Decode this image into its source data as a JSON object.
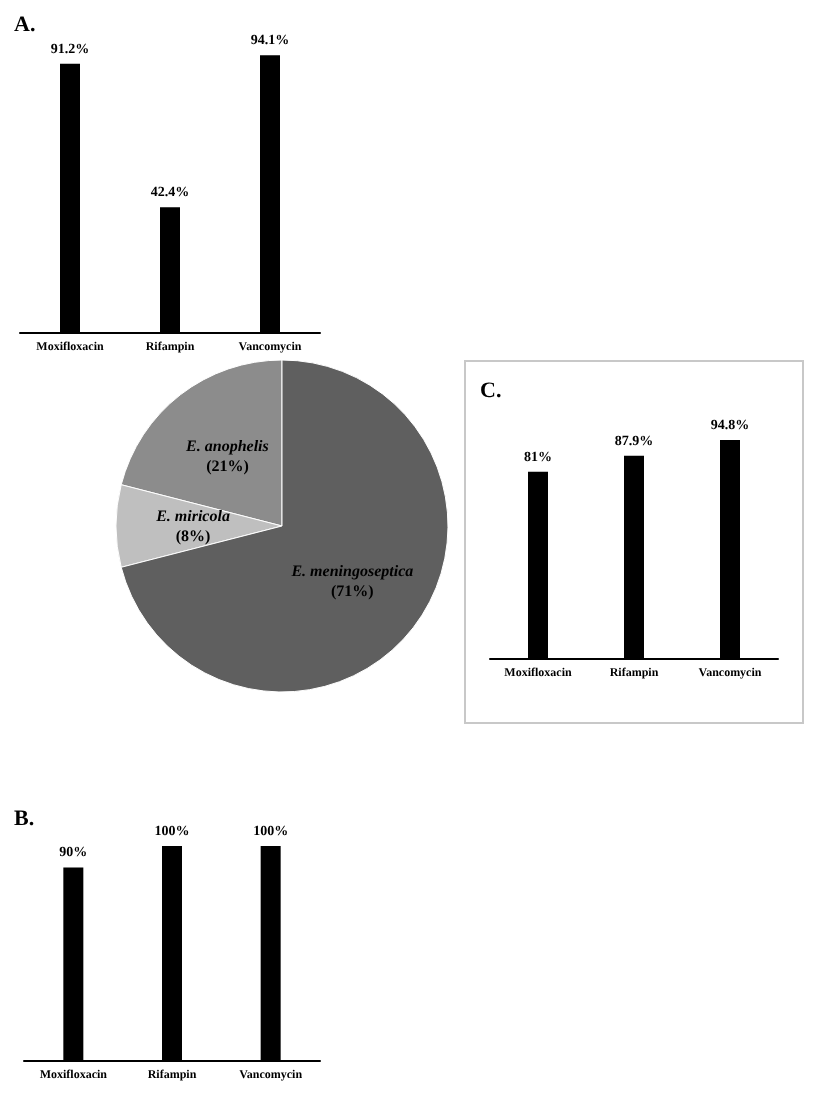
{
  "chart_data": [
    {
      "type": "bar",
      "title": "A.",
      "categories": [
        "Moxifloxacin",
        "Rifampin",
        "Vancomycin"
      ],
      "values": [
        91.2,
        42.4,
        94.1
      ],
      "value_labels": [
        "91.2%",
        "42.4%",
        "94.1%"
      ],
      "color": "#000000",
      "grid": false,
      "legend": false,
      "tick_labels": "x"
    },
    {
      "type": "pie",
      "categories": [
        "E. anophelis",
        "E. miricola",
        "E. meningoseptica"
      ],
      "values": [
        21,
        8,
        71
      ],
      "value_labels": [
        "(21%)",
        "(8%)",
        "(71%)"
      ],
      "colors": [
        "#8c8c8c",
        "#bfbfbf",
        "#5f5f5f"
      ],
      "legend": false
    },
    {
      "type": "bar",
      "title": "C.",
      "categories": [
        "Moxifloxacin",
        "Rifampin",
        "Vancomycin"
      ],
      "values": [
        81,
        87.9,
        94.8
      ],
      "value_labels": [
        "81%",
        "87.9%",
        "94.8%"
      ],
      "color": "#000000",
      "grid": false,
      "legend": false,
      "tick_labels": "x"
    },
    {
      "type": "bar",
      "title": "B.",
      "categories": [
        "Moxifloxacin",
        "Rifampin",
        "Vancomycin"
      ],
      "values": [
        90,
        100,
        100
      ],
      "value_labels": [
        "90%",
        "100%",
        "100%"
      ],
      "color": "#000000",
      "grid": false,
      "legend": false,
      "tick_labels": "x"
    }
  ]
}
